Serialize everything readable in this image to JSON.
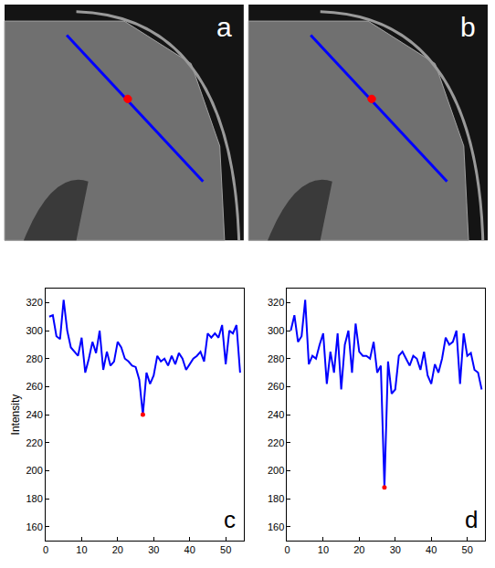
{
  "image_panels": [
    {
      "label": "a"
    },
    {
      "label": "b"
    }
  ],
  "chart_data": [
    {
      "type": "line",
      "label": "c",
      "y_label": "Intensity",
      "xlim": [
        0,
        55
      ],
      "xticks": [
        0,
        10,
        20,
        30,
        40,
        50
      ],
      "ylim": [
        150,
        330
      ],
      "yticks": [
        160,
        180,
        200,
        220,
        240,
        260,
        280,
        300,
        320
      ],
      "grid": false,
      "series": [
        {
          "type": "line",
          "color": "#0000ff",
          "x": [
            1,
            2,
            3,
            4,
            5,
            6,
            7,
            8,
            9,
            10,
            11,
            12,
            13,
            14,
            15,
            16,
            17,
            18,
            19,
            20,
            21,
            22,
            23,
            24,
            25,
            26,
            27,
            28,
            29,
            30,
            31,
            32,
            33,
            34,
            35,
            36,
            37,
            38,
            39,
            40,
            41,
            42,
            43,
            44,
            45,
            46,
            47,
            48,
            49,
            50,
            51,
            52,
            53,
            54
          ],
          "values": [
            310,
            311,
            296,
            294,
            322,
            300,
            288,
            285,
            282,
            295,
            270,
            280,
            292,
            284,
            300,
            272,
            285,
            275,
            278,
            292,
            288,
            280,
            278,
            275,
            274,
            265,
            240,
            270,
            262,
            268,
            282,
            278,
            280,
            275,
            282,
            276,
            284,
            280,
            272,
            276,
            280,
            282,
            285,
            278,
            298,
            295,
            298,
            295,
            304,
            276,
            300,
            298,
            304,
            270
          ]
        },
        {
          "type": "scatter",
          "marker": "dot",
          "color": "#ff0000",
          "x": [
            27
          ],
          "values": [
            240
          ]
        }
      ]
    },
    {
      "type": "line",
      "label": "d",
      "xlim": [
        0,
        55
      ],
      "xticks": [
        0,
        10,
        20,
        30,
        40,
        50
      ],
      "ylim": [
        150,
        330
      ],
      "yticks": [
        160,
        180,
        200,
        220,
        240,
        260,
        280,
        300,
        320
      ],
      "grid": false,
      "series": [
        {
          "type": "line",
          "color": "#0000ff",
          "x": [
            1,
            2,
            3,
            4,
            5,
            6,
            7,
            8,
            9,
            10,
            11,
            12,
            13,
            14,
            15,
            16,
            17,
            18,
            19,
            20,
            21,
            22,
            23,
            24,
            25,
            26,
            27,
            28,
            29,
            30,
            31,
            32,
            33,
            34,
            35,
            36,
            37,
            38,
            39,
            40,
            41,
            42,
            43,
            44,
            45,
            46,
            47,
            48,
            49,
            50,
            51,
            52,
            53,
            54
          ],
          "values": [
            300,
            311,
            292,
            296,
            322,
            276,
            282,
            280,
            290,
            298,
            262,
            285,
            270,
            298,
            258,
            290,
            300,
            270,
            305,
            285,
            282,
            282,
            280,
            292,
            270,
            275,
            188,
            278,
            255,
            258,
            282,
            285,
            280,
            275,
            282,
            280,
            272,
            285,
            268,
            262,
            276,
            270,
            280,
            295,
            290,
            292,
            300,
            262,
            298,
            282,
            284,
            272,
            270,
            258
          ]
        },
        {
          "type": "scatter",
          "marker": "dot",
          "color": "#ff0000",
          "x": [
            27
          ],
          "values": [
            188
          ]
        }
      ]
    }
  ]
}
